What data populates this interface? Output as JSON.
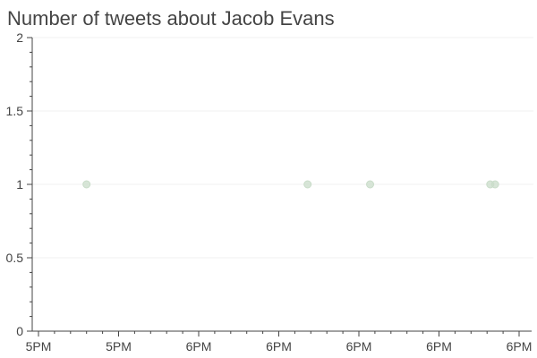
{
  "chart_data": {
    "type": "scatter",
    "title": "Number of tweets about Jacob Evans",
    "xlabel": "",
    "ylabel": "",
    "x_axis_type": "time",
    "x_tick_labels": [
      "5PM",
      "5PM",
      "6PM",
      "6PM",
      "6PM",
      "6PM",
      "6PM"
    ],
    "y_tick_labels": [
      "0",
      "0.5",
      "1",
      "1.5",
      "2"
    ],
    "ylim": [
      0,
      2
    ],
    "grid": "horizontal",
    "legend": "none",
    "series": [
      {
        "x": [
          "17:10",
          "17:56",
          "18:09",
          "18:34",
          "18:35"
        ],
        "y": [
          1,
          1,
          1,
          1,
          1
        ],
        "color": "#c9dcc9"
      }
    ]
  }
}
